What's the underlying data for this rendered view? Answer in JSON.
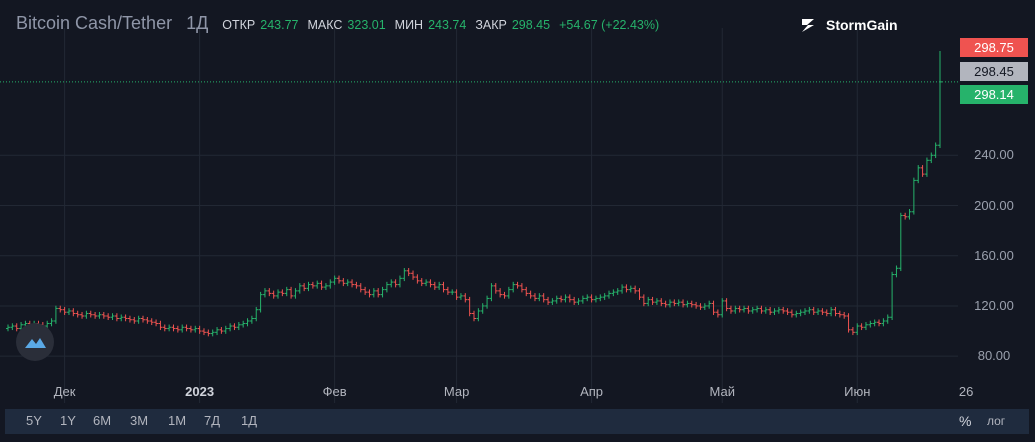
{
  "header": {
    "symbol": "Bitcoin Cash/Tether",
    "interval": "1Д",
    "open_label": "ОТКР",
    "open": "243.77",
    "high_label": "МАКС",
    "high": "323.01",
    "low_label": "МИН",
    "low": "243.74",
    "close_label": "ЗАКР",
    "close": "298.45",
    "change": "+54.67 (+22.43%)"
  },
  "brand": {
    "name": "StormGain"
  },
  "price_labels": {
    "ask": "298.75",
    "last": "298.45",
    "bid": "298.14"
  },
  "colors": {
    "up": "#26b36b",
    "down": "#ef5350",
    "ask_box": "#ef5350",
    "last_box": "#b2b5be",
    "bid_box": "#26b36b"
  },
  "bottom_bar": {
    "ranges": [
      "5Y",
      "1Y",
      "6M",
      "3M",
      "1M",
      "7Д",
      "1Д"
    ],
    "percent": "%",
    "log": "лог"
  },
  "chart_data": {
    "type": "ohlc",
    "ylim": [
      65,
      335
    ],
    "yticks": [
      80,
      120,
      160,
      200,
      240
    ],
    "ytick_labels": [
      "80.00",
      "120.00",
      "160.00",
      "200.00",
      "240.00"
    ],
    "x_ticks": [
      {
        "label": "Дек",
        "index": 13
      },
      {
        "label": "2023",
        "index": 44
      },
      {
        "label": "Фев",
        "index": 75
      },
      {
        "label": "Мар",
        "index": 103
      },
      {
        "label": "Апр",
        "index": 134
      },
      {
        "label": "Май",
        "index": 164
      },
      {
        "label": "Июн",
        "index": 195
      },
      {
        "label": "26",
        "index": 220
      }
    ],
    "closes": [
      103,
      104,
      102,
      105,
      106,
      104,
      106,
      105,
      104,
      106,
      108,
      118,
      117,
      115,
      116,
      114,
      113,
      112,
      114,
      113,
      112,
      113,
      112,
      111,
      112,
      110,
      111,
      110,
      109,
      108,
      110,
      109,
      108,
      107,
      106,
      103,
      102,
      103,
      102,
      101,
      103,
      102,
      101,
      102,
      100,
      99,
      98,
      99,
      101,
      100,
      102,
      104,
      103,
      105,
      106,
      108,
      110,
      117,
      129,
      132,
      130,
      128,
      131,
      130,
      133,
      128,
      132,
      136,
      134,
      137,
      136,
      138,
      135,
      136,
      139,
      142,
      140,
      138,
      139,
      137,
      136,
      133,
      131,
      129,
      132,
      129,
      133,
      137,
      139,
      137,
      142,
      148,
      146,
      143,
      140,
      138,
      139,
      137,
      135,
      137,
      133,
      131,
      131,
      127,
      128,
      125,
      114,
      110,
      116,
      120,
      126,
      136,
      132,
      129,
      128,
      133,
      137,
      136,
      133,
      130,
      128,
      126,
      128,
      125,
      123,
      124,
      126,
      125,
      127,
      125,
      123,
      124,
      126,
      127,
      125,
      126,
      127,
      128,
      130,
      131,
      132,
      135,
      133,
      134,
      132,
      127,
      122,
      125,
      123,
      124,
      122,
      121,
      123,
      122,
      123,
      121,
      122,
      121,
      120,
      119,
      120,
      122,
      115,
      113,
      124,
      118,
      116,
      118,
      117,
      118,
      116,
      117,
      118,
      116,
      117,
      115,
      116,
      117,
      116,
      115,
      113,
      114,
      115,
      116,
      117,
      115,
      116,
      115,
      114,
      117,
      114,
      113,
      112,
      101,
      99,
      104,
      103,
      105,
      106,
      107,
      106,
      108,
      111,
      145,
      150,
      192,
      191,
      195,
      220,
      230,
      225,
      236,
      240,
      248,
      298.45
    ]
  }
}
